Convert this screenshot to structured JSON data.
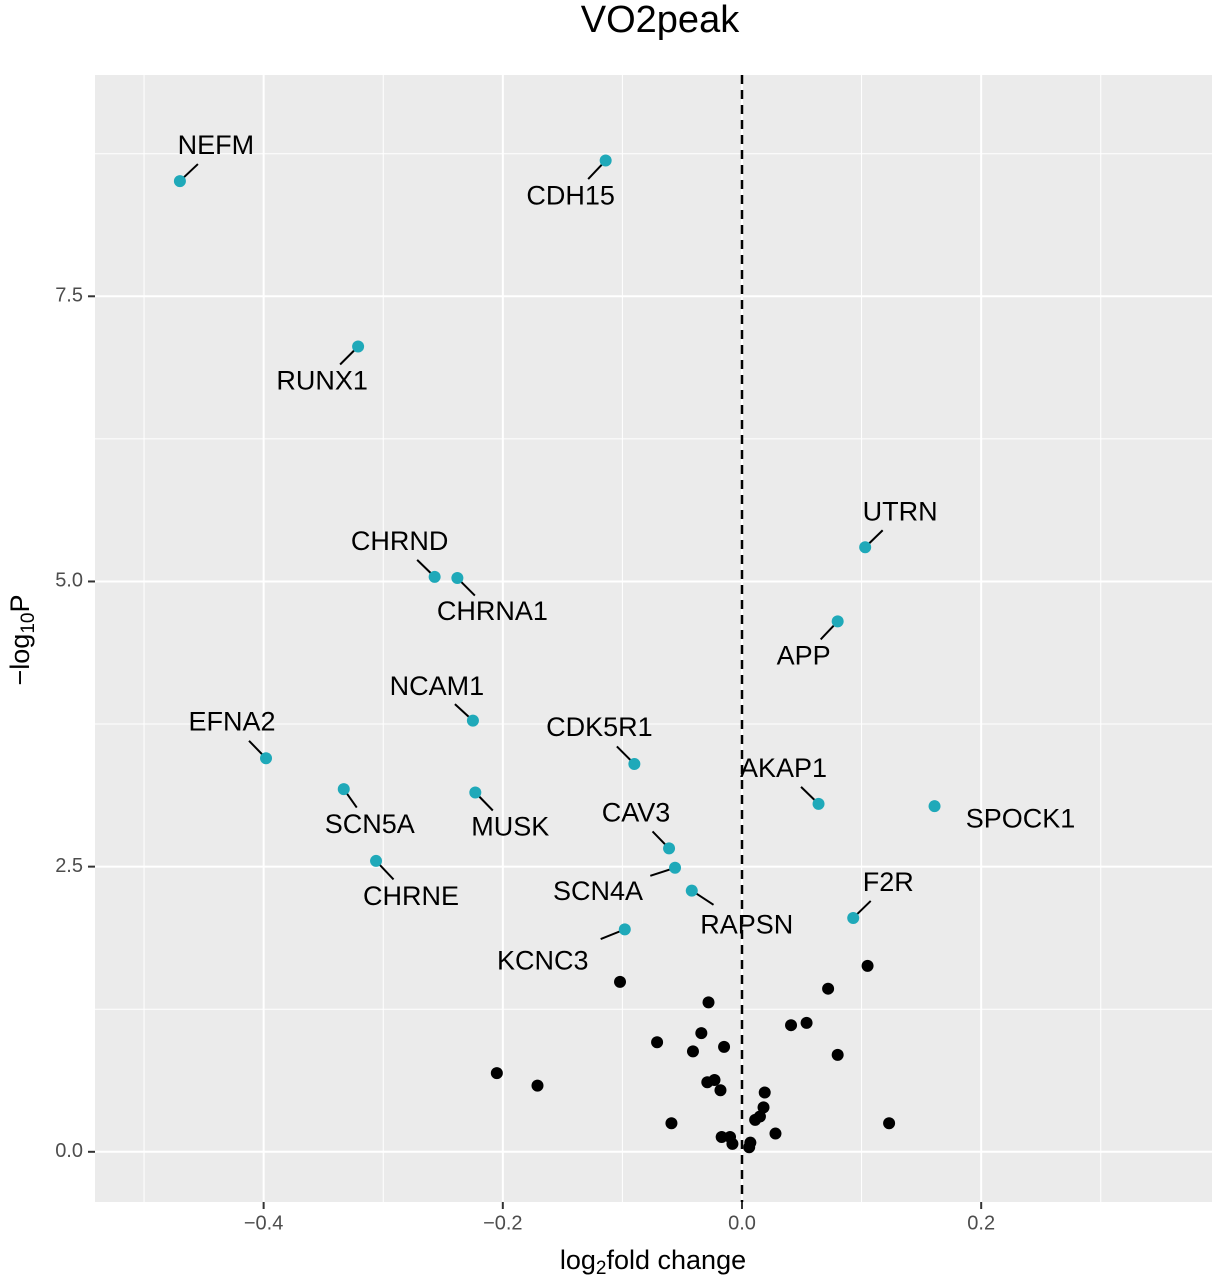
{
  "chart_data": {
    "type": "scatter",
    "title": "VO2peak",
    "x_label": {
      "base": "log",
      "sub": "2",
      "rest": "fold change"
    },
    "y_label": {
      "base": "−log",
      "sub": "10",
      "rest": "P"
    },
    "xlim": [
      -0.541,
      0.393
    ],
    "ylim": [
      -0.44,
      9.44
    ],
    "xticks": [
      {
        "value": -0.4,
        "label": "−0.4"
      },
      {
        "value": -0.2,
        "label": "−0.2"
      },
      {
        "value": 0,
        "label": "0.0"
      },
      {
        "value": 0.2,
        "label": "0.2"
      }
    ],
    "yticks": [
      {
        "value": 0,
        "label": "0.0"
      },
      {
        "value": 2.5,
        "label": "2.5"
      },
      {
        "value": 5,
        "label": "5.0"
      },
      {
        "value": 7.5,
        "label": "7.5"
      }
    ],
    "x_minor_ticks": [
      -0.5,
      -0.3,
      -0.1,
      0.1,
      0.3
    ],
    "y_minor_ticks": [
      1.25,
      3.75,
      6.25,
      8.75
    ],
    "grid": true,
    "vline": {
      "x": 0,
      "style": "dashed"
    },
    "series": [
      {
        "color": "#1fa9b9",
        "labels": [
          "NEFM",
          "CDH15",
          "RUNX1",
          "UTRN",
          "CHRND",
          "CHRNA1",
          "APP",
          "NCAM1",
          "EFNA2",
          "CDK5R1",
          "SCN5A",
          "MUSK",
          "AKAP1",
          "SPOCK1",
          "CAV3",
          "SCN4A",
          "CHRNE",
          "RAPSN",
          "F2R",
          "KCNC3"
        ],
        "x": [
          -0.47,
          -0.114,
          -0.321,
          0.103,
          -0.257,
          -0.238,
          0.08,
          -0.225,
          -0.398,
          -0.09,
          -0.333,
          -0.223,
          0.064,
          0.161,
          -0.061,
          -0.056,
          -0.306,
          -0.042,
          0.093,
          -0.098
        ],
        "values": [
          8.51,
          8.69,
          7.06,
          5.3,
          5.04,
          5.03,
          4.65,
          3.78,
          3.45,
          3.4,
          3.18,
          3.15,
          3.05,
          3.03,
          2.66,
          2.49,
          2.55,
          2.29,
          2.05,
          1.95
        ]
      },
      {
        "color": "#000000",
        "x": [
          0.105,
          -0.102,
          0.072,
          -0.028,
          0.054,
          0.041,
          -0.034,
          -0.071,
          -0.015,
          -0.041,
          0.08,
          -0.205,
          -0.023,
          -0.029,
          -0.171,
          -0.018,
          0.019,
          0.018,
          0.015,
          0.011,
          -0.059,
          0.123,
          0.028,
          -0.017,
          -0.01,
          -0.008,
          0.007,
          0.006
        ],
        "values": [
          1.63,
          1.49,
          1.43,
          1.31,
          1.13,
          1.11,
          1.04,
          0.96,
          0.92,
          0.88,
          0.85,
          0.69,
          0.63,
          0.61,
          0.58,
          0.54,
          0.52,
          0.39,
          0.31,
          0.28,
          0.25,
          0.25,
          0.16,
          0.13,
          0.13,
          0.07,
          0.08,
          0.04
        ]
      }
    ]
  }
}
